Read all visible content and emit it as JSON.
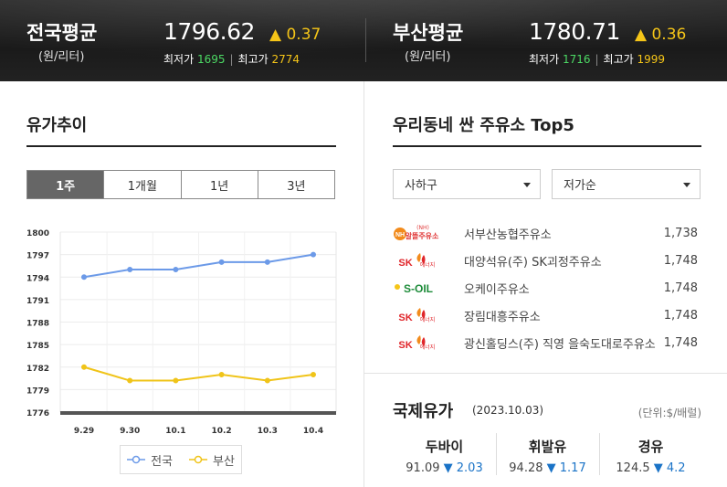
{
  "header": {
    "national": {
      "name": "전국평균",
      "unit": "(원/리터)",
      "price": "1796.62",
      "change": "▲ 0.37",
      "min_label": "최저가",
      "min": "1695",
      "max_label": "최고가",
      "max": "2774"
    },
    "busan": {
      "name": "부산평균",
      "unit": "(원/리터)",
      "price": "1780.71",
      "change": "▲ 0.36",
      "min_label": "최저가",
      "min": "1716",
      "max_label": "최고가",
      "max": "1999"
    }
  },
  "trend": {
    "title": "유가추이",
    "tabs": [
      "1주",
      "1개월",
      "1년",
      "3년"
    ],
    "active_tab": 0
  },
  "chart_data": {
    "type": "line",
    "categories": [
      "9.29",
      "9.30",
      "10.1",
      "10.2",
      "10.3",
      "10.4"
    ],
    "y_ticks": [
      1776,
      1779,
      1782,
      1785,
      1788,
      1791,
      1794,
      1797,
      1800
    ],
    "ylim": [
      1776,
      1800
    ],
    "grid": true,
    "legend_position": "bottom",
    "series": [
      {
        "name": "전국",
        "color": "#6c9ae8",
        "values": [
          1794.0,
          1795.0,
          1795.0,
          1796.0,
          1796.0,
          1797.0
        ]
      },
      {
        "name": "부산",
        "color": "#f0c419",
        "values": [
          1782.0,
          1780.2,
          1780.2,
          1781.0,
          1780.2,
          1781.0
        ]
      }
    ]
  },
  "stations": {
    "title": "우리동네 싼 주유소 Top5",
    "region_select": "사하구",
    "sort_select": "저가순",
    "items": [
      {
        "logo": "nh-logo",
        "brand": "알뜰주유소",
        "brand_tag": "(NH)",
        "name": "서부산농협주유소",
        "price": "1,738"
      },
      {
        "logo": "sk-logo",
        "brand": "SK",
        "brand_sub": "에너지",
        "name": "대양석유(주) SK괴정주유소",
        "price": "1,748"
      },
      {
        "logo": "soil-logo",
        "brand": "S-OIL",
        "name": "오케이주유소",
        "price": "1,748"
      },
      {
        "logo": "sk-logo",
        "brand": "SK",
        "brand_sub": "에너지",
        "name": "장림대흥주유소",
        "price": "1,748"
      },
      {
        "logo": "sk-logo",
        "brand": "SK",
        "brand_sub": "에너지",
        "name": "광신홀딩스(주) 직영 을숙도대로주유소",
        "price": "1,748"
      }
    ]
  },
  "intl": {
    "title": "국제유가",
    "date": "(2023.10.03)",
    "unit": "(단위:$/배럴)",
    "items": [
      {
        "name": "두바이",
        "value": "91.09",
        "change": "▼ 2.03"
      },
      {
        "name": "휘발유",
        "value": "94.28",
        "change": "▼ 1.17"
      },
      {
        "name": "경유",
        "value": "124.5",
        "change": "▼ 4.2"
      }
    ]
  },
  "colors": {
    "up": "#f5c518",
    "low": "#4cd964",
    "down": "#1a73c7",
    "national_line": "#6c9ae8",
    "busan_line": "#f0c419"
  }
}
